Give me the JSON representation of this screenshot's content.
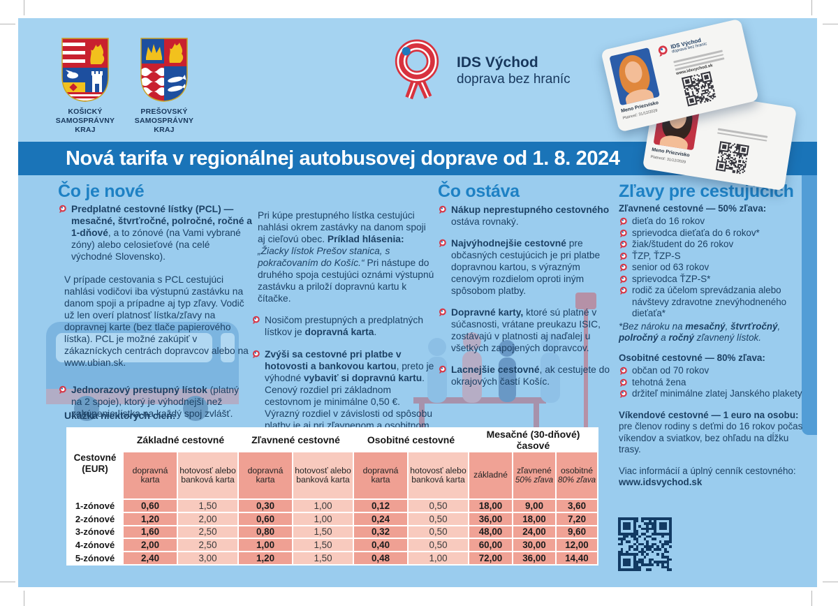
{
  "banner": {
    "title": "Nová tarifa v regionálnej autobusovej doprave od 1. 8. 2024"
  },
  "header": {
    "crest1_label": "KOŠICKÝ SAMOSPRÁVNY KRAJ",
    "crest2_label": "PREŠOVSKÝ SAMOSPRÁVNY KRAJ",
    "logo_title": "IDS Východ",
    "logo_subtitle": "doprava bez hraníc",
    "card": {
      "name": "Meno Priezvisko",
      "validity": "Platnosť: 31/12/2029",
      "logo_title": "IDS Východ",
      "logo_subtitle": "doprava bez hraníc",
      "website": "www.idsvychod.sk"
    }
  },
  "columns": {
    "col1": {
      "heading": "Čo je nové",
      "item1": [
        "Predplatné cestovné lístky (PCL) — mesačné, štvrťročné, polročné, ročné a 1-dňové",
        ", a to zónové (na Vami vybrané zóny) alebo celosieťové (na celé východné Slovensko)."
      ],
      "para1": "V prípade cestovania s PCL cestujúci nahlási vodičovi iba výstupnú zastávku na danom spoji a prípadne aj typ zľavy. Vodič už len overí platnosť lístka/zľavy na dopravnej karte (bez tlače papierového lístka). PCL je možné zakúpiť v zákazníckych centrách dopravcov alebo na www.ubian.sk.",
      "item2": [
        "Jednorazový prestupný lístok",
        " (platný na 2 spoje), ktorý je výhodnejší než zakúpenie lístka na každý spoj zvlášť."
      ],
      "table_caption": "Ukážka niektorých cien:"
    },
    "col2": {
      "para1": [
        "Pri kúpe prestupného lístka cestujúci nahlási okrem zastávky na danom spoji aj cieľovú obec. ",
        "Príklad hlásenia:",
        " „Žiacky lístok Prešov stanica, s pokračovaním do Košíc.“",
        " Pri nástupe do druhého spoja cestujúci oznámi výstupnú zastávku a priloží dopravnú kartu k čítačke."
      ],
      "item1": [
        "Nosičom prestupných a predplatných lístkov je ",
        "dopravná karta",
        "."
      ],
      "item2": [
        "Zvýši sa cestovné pri platbe v hotovosti a bankovou kartou",
        ", preto je výhodné ",
        "vybaviť si dopravnú kartu",
        ". Cenový rozdiel pri základnom cestovnom je minimálne 0,50 €. Výrazný rozdiel v závislosti od spôsobu platby je aj pri zľavnenom a osobitnom cestovnom."
      ]
    },
    "col3": {
      "heading": "Čo ostáva",
      "item1": [
        "Nákup neprestupného cestovného",
        " ostáva rovnaký."
      ],
      "item2": [
        "Najvýhodnejšie cestovné",
        " pre občasných cestujúcich je pri platbe dopravnou kartou, s výrazným cenovým rozdielom oproti iným spôsobom platby."
      ],
      "item3": [
        "Dopravné karty,",
        " ktoré sú platné v súčasnosti, vrátane preukazu ISIC, zostávajú v platnosti aj naďalej u všetkých zapojených dopravcov."
      ],
      "item4": [
        "Lacnejšie cestovné",
        ", ak cestujete do okrajových častí Košíc."
      ]
    },
    "col4": {
      "heading": "Zľavy pre cestujúcich",
      "sub1": "Zľavnené cestovné — 50% zľava:",
      "list1": [
        "dieťa do 16 rokov",
        "sprievodca dieťaťa do 6 rokov*",
        "žiak/študent do 26 rokov",
        "ŤZP, ŤZP-S",
        "senior od 63 rokov",
        "sprievodca ŤZP-S*",
        "rodič za účelom sprevádzania alebo návštevy zdravotne znevýhodneného dieťaťa*"
      ],
      "note1": [
        "*Bez nároku na ",
        "mesačný",
        ", ",
        "štvrťročný",
        ", ",
        "polročný",
        " a ",
        "ročný",
        " zľavnený lístok."
      ],
      "sub2": "Osobitné cestovné — 80% zľava:",
      "list2": [
        "občan od 70 rokov",
        "tehotná žena",
        "držiteľ minimálne zlatej Janského plakety"
      ],
      "sub3": "Víkendové cestovné — 1 euro na osobu:",
      "para3": "pre členov rodiny s deťmi do 16 rokov počas víkendov a sviatkov, bez ohľadu na dĺžku trasy.",
      "more_info": "Viac informácií a úplný cenník cestovného:",
      "website": "www.idsvychod.sk"
    }
  },
  "table": {
    "corner": "Cestovné (EUR)",
    "groups": [
      "Základné cestovné",
      "Zľavnené cestovné",
      "Osobitné cestovné",
      "Mesačné (30-dňové) časové"
    ],
    "sub_headers": [
      {
        "t": "dopravná karta"
      },
      {
        "t": "hotovosť alebo banková karta"
      },
      {
        "t": "dopravná karta"
      },
      {
        "t": "hotovosť alebo banková karta"
      },
      {
        "t": "dopravná karta"
      },
      {
        "t": "hotovosť alebo banková karta"
      },
      {
        "t": "základné"
      },
      {
        "t": "zľavnené",
        "s": "50% zľava"
      },
      {
        "t": "osobitné",
        "s": "80% zľava"
      }
    ],
    "rows": [
      {
        "label": "1-zónové",
        "values": [
          "0,60",
          "1,50",
          "0,30",
          "1,00",
          "0,12",
          "0,50",
          "18,00",
          "9,00",
          "3,60"
        ]
      },
      {
        "label": "2-zónové",
        "values": [
          "1,20",
          "2,00",
          "0,60",
          "1,00",
          "0,24",
          "0,50",
          "36,00",
          "18,00",
          "7,20"
        ]
      },
      {
        "label": "3-zónové",
        "values": [
          "1,60",
          "2,50",
          "0,80",
          "1,50",
          "0,32",
          "0,50",
          "48,00",
          "24,00",
          "9,60"
        ]
      },
      {
        "label": "4-zónové",
        "values": [
          "2,00",
          "2,50",
          "1,00",
          "1,50",
          "0,40",
          "0,50",
          "60,00",
          "30,00",
          "12,00"
        ]
      },
      {
        "label": "5-zónové",
        "values": [
          "2,40",
          "3,00",
          "1,20",
          "1,50",
          "0,48",
          "1,00",
          "72,00",
          "36,00",
          "14,40"
        ]
      }
    ]
  },
  "colors": {
    "banner_blue": "#1a74b8",
    "header_bg": "#a5d3f1",
    "main_bg": "#9accee",
    "heading_blue": "#1e81c4",
    "body_navy": "#1c4164",
    "accent_red": "#d63747",
    "table_dark_salmon": "#efa093",
    "table_light_salmon": "#f8cabe"
  }
}
